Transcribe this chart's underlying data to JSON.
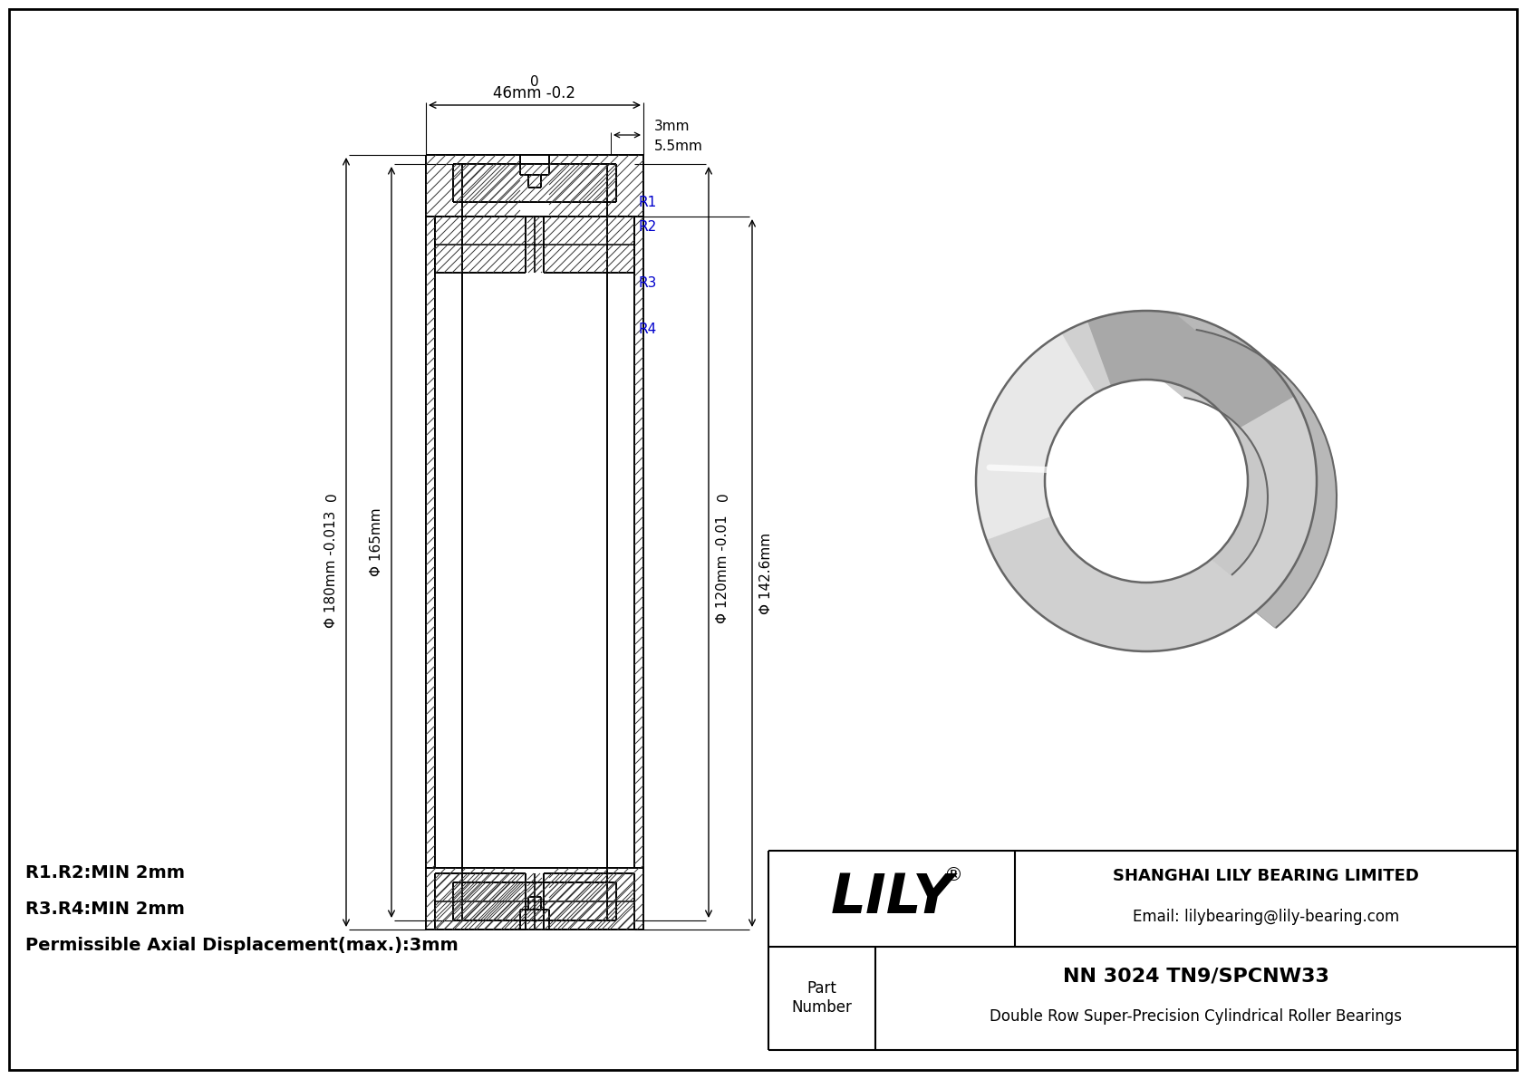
{
  "bg_color": "#ffffff",
  "line_color": "#000000",
  "blue_color": "#0000cc",
  "title": "NN 3024 TN9/SPCNW33",
  "subtitle": "Double Row Super-Precision Cylindrical Roller Bearings",
  "company": "SHANGHAI LILY BEARING LIMITED",
  "email": "Email: lilybearing@lily-bearing.com",
  "part_label": "Part\nNumber",
  "logo_text": "LILY",
  "logo_reg": "®",
  "dim_outer_0": "0",
  "dim_outer": "Φ 180mm -0.013",
  "dim_inner_outer": "Φ 165mm",
  "dim_bore_0": "0",
  "dim_bore": "Φ 120mm -0.01",
  "dim_bore2": "Φ 142.6mm",
  "dim_width_0": "0",
  "dim_width": "46mm -0.2",
  "dim_flange": "3mm",
  "dim_flange2": "5.5mm",
  "r1": "R1",
  "r2": "R2",
  "r3": "R3",
  "r4": "R4",
  "note1": "R1.R2:MIN 2mm",
  "note2": "R3.R4:MIN 2mm",
  "note3": "Permissible Axial Displacement(max.):3mm"
}
